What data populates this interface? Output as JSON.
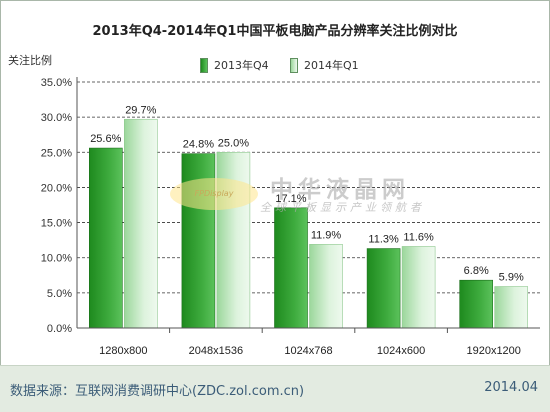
{
  "title": "2013年Q4-2014年Q1中国平板电脑产品分辨率关注比例对比",
  "ylabel": "关注比例",
  "colors": {
    "series1_dark": "#1e8a1e",
    "series1_light": "#5cc25c",
    "series2_dark": "#9bd79b",
    "series2_light": "#eef9ee",
    "grid": "#333333"
  },
  "watermark": {
    "logo": "FPDisplay",
    "brand": "中华液晶网",
    "slogan": "全球平板显示产业领航者"
  },
  "footer": {
    "source": "数据来源：互联网消费调研中心(ZDC.zol.com.cn)",
    "date": "2014.04"
  },
  "chart_data": {
    "type": "bar",
    "title": "2013年Q4-2014年Q1中国平板电脑产品分辨率关注比例对比",
    "ylabel": "关注比例",
    "xlabel": "",
    "categories": [
      "1280x800",
      "2048x1536",
      "1024x768",
      "1024x600",
      "1920x1200"
    ],
    "series": [
      {
        "name": "2013年Q4",
        "values": [
          25.6,
          24.8,
          17.1,
          11.3,
          6.8
        ],
        "labels": [
          "25.6%",
          "24.8%",
          "17.1%",
          "11.3%",
          "6.8%"
        ]
      },
      {
        "name": "2014年Q1",
        "values": [
          29.7,
          25.0,
          11.9,
          11.6,
          5.9
        ],
        "labels": [
          "29.7%",
          "25.0%",
          "11.9%",
          "11.6%",
          "5.9%"
        ]
      }
    ],
    "ylim": [
      0,
      35
    ],
    "yticks": [
      "0.0%",
      "5.0%",
      "10.0%",
      "15.0%",
      "20.0%",
      "25.0%",
      "30.0%",
      "35.0%"
    ],
    "grid": true,
    "legend": "top"
  }
}
